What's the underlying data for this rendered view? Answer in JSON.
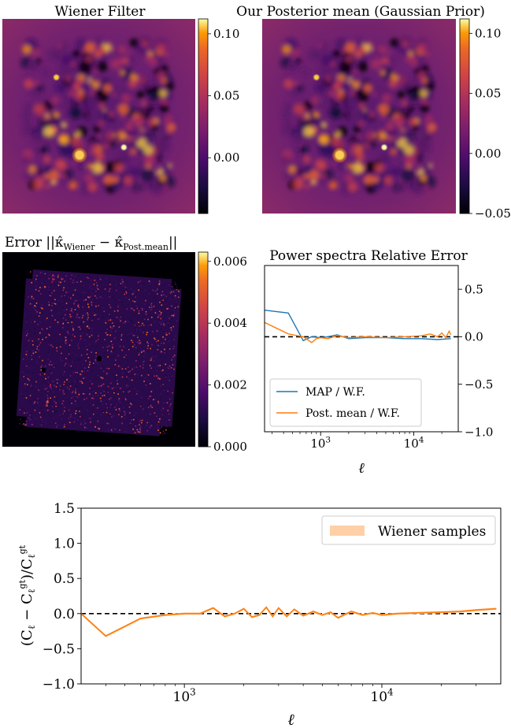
{
  "panels": {
    "wiener": {
      "title": "Wiener Filter",
      "colorbar_ticks": [
        {
          "value": 0.1,
          "label": "0.10"
        },
        {
          "value": 0.05,
          "label": "0.05"
        },
        {
          "value": 0.0,
          "label": "0.00"
        }
      ],
      "vmin": -0.045,
      "vmax": 0.112,
      "colormap": "inferno"
    },
    "posterior": {
      "title": "Our Posterior mean (Gaussian Prior)",
      "colorbar_ticks": [
        {
          "value": 0.1,
          "label": "0.10"
        },
        {
          "value": 0.05,
          "label": "0.05"
        },
        {
          "value": 0.0,
          "label": "0.00"
        },
        {
          "value": -0.05,
          "label": "−0.05"
        }
      ],
      "vmin": -0.05,
      "vmax": 0.112,
      "colormap": "inferno"
    },
    "error": {
      "title_prefix": "Error ||",
      "title_k1": "κ̂",
      "title_sub1": "Wiener",
      "title_minus": " − ",
      "title_k2": "κ̂",
      "title_sub2": "Post.mean",
      "title_suffix": "||",
      "colorbar_ticks": [
        {
          "value": 0.006,
          "label": "0.006"
        },
        {
          "value": 0.004,
          "label": "0.004"
        },
        {
          "value": 0.002,
          "label": "0.002"
        },
        {
          "value": 0.0,
          "label": "0.000"
        }
      ],
      "vmin": 0.0,
      "vmax": 0.0063,
      "colormap": "inferno"
    }
  },
  "chart_data": [
    {
      "type": "line",
      "title": "Power spectra Relative Error",
      "xlabel": "ℓ",
      "ylabel": "",
      "xscale": "log",
      "xlim": [
        250,
        30000
      ],
      "ylim": [
        -1.0,
        0.75
      ],
      "yticks": [
        {
          "value": 0.5,
          "label": "0.5"
        },
        {
          "value": 0.0,
          "label": "0.0"
        },
        {
          "value": -0.5,
          "label": "−0.5"
        },
        {
          "value": -1.0,
          "label": "−1.0"
        }
      ],
      "xticks": [
        {
          "value": 1000,
          "base": "10",
          "exp": "3"
        },
        {
          "value": 10000,
          "base": "10",
          "exp": "4"
        }
      ],
      "yaxis_side": "right",
      "reference_line": 0.0,
      "legend_position": "lower-left",
      "series": [
        {
          "name": "MAP / W.F.",
          "color": "#1f77b4",
          "x": [
            250,
            450,
            650,
            800,
            1000,
            1200,
            1500,
            2000,
            3000,
            5000,
            8000,
            12000,
            18000,
            25000
          ],
          "y": [
            0.28,
            0.25,
            -0.04,
            0.0,
            -0.01,
            0.0,
            0.02,
            -0.02,
            -0.01,
            -0.01,
            -0.02,
            -0.02,
            -0.03,
            -0.02
          ]
        },
        {
          "name": "Post. mean / W.F.",
          "color": "#ff7f0e",
          "x": [
            250,
            450,
            650,
            800,
            900,
            1000,
            1200,
            1500,
            2000,
            3000,
            5000,
            8000,
            12000,
            15000,
            18000,
            20000,
            22000,
            24000,
            25000
          ],
          "y": [
            0.15,
            0.03,
            0.0,
            -0.06,
            -0.02,
            -0.01,
            -0.02,
            0.01,
            -0.01,
            0.0,
            -0.01,
            0.0,
            0.01,
            0.03,
            0.0,
            0.04,
            -0.01,
            0.06,
            0.02
          ]
        }
      ]
    },
    {
      "type": "line",
      "title": "",
      "xlabel": "ℓ",
      "ylabel_main": "(C",
      "xscale": "log",
      "xlim": [
        300,
        40000
      ],
      "ylim": [
        -1.0,
        1.5
      ],
      "yticks": [
        {
          "value": 1.5,
          "label": "1.5"
        },
        {
          "value": 1.0,
          "label": "1.0"
        },
        {
          "value": 0.5,
          "label": "0.5"
        },
        {
          "value": 0.0,
          "label": "0.0"
        },
        {
          "value": -0.5,
          "label": "−0.5"
        },
        {
          "value": -1.0,
          "label": "−1.0"
        }
      ],
      "xticks": [
        {
          "value": 1000,
          "base": "10",
          "exp": "3"
        },
        {
          "value": 10000,
          "base": "10",
          "exp": "4"
        }
      ],
      "reference_line": 0.0,
      "legend_position": "top-right",
      "series": [
        {
          "name": "Wiener samples",
          "color": "#ff7f0e",
          "band_color": "#ffcfa6",
          "x": [
            300,
            400,
            600,
            800,
            1000,
            1200,
            1400,
            1600,
            1800,
            2000,
            2200,
            2400,
            2600,
            2800,
            3000,
            3300,
            3600,
            4000,
            4500,
            5000,
            5500,
            6000,
            7000,
            8000,
            9000,
            10000,
            12000,
            15000,
            20000,
            25000,
            30000,
            38000
          ],
          "y": [
            0.0,
            -0.32,
            -0.07,
            -0.02,
            0.0,
            0.0,
            0.08,
            -0.04,
            0.0,
            0.07,
            -0.05,
            -0.02,
            0.09,
            -0.04,
            0.08,
            -0.04,
            0.06,
            -0.03,
            0.03,
            -0.02,
            0.02,
            -0.06,
            0.03,
            -0.02,
            0.01,
            -0.02,
            0.0,
            0.01,
            0.02,
            0.03,
            0.05,
            0.07
          ]
        }
      ]
    }
  ]
}
